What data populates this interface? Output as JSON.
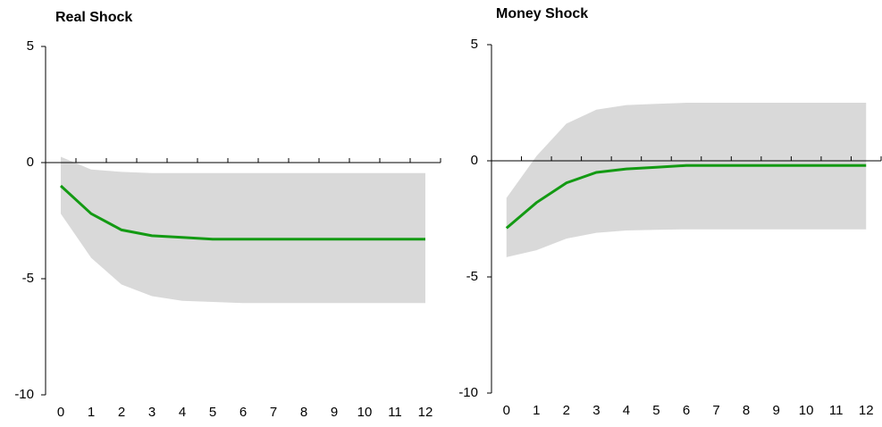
{
  "chart_data": [
    {
      "type": "line",
      "title": "Real Shock",
      "categories": [
        "0",
        "1",
        "2",
        "3",
        "4",
        "5",
        "6",
        "7",
        "8",
        "9",
        "10",
        "11",
        "12"
      ],
      "line": {
        "color": "#139a13",
        "values": [
          -1.0,
          -2.2,
          -2.9,
          -3.15,
          -3.22,
          -3.3,
          -3.3,
          -3.3,
          -3.3,
          -3.3,
          -3.3,
          -3.3,
          -3.3
        ]
      },
      "band": {
        "color": "#d9d9d9",
        "upper": [
          0.25,
          -0.3,
          -0.4,
          -0.45,
          -0.45,
          -0.45,
          -0.45,
          -0.45,
          -0.45,
          -0.45,
          -0.45,
          -0.45,
          -0.45
        ],
        "lower": [
          -2.2,
          -4.1,
          -5.25,
          -5.75,
          -5.95,
          -6.0,
          -6.05,
          -6.05,
          -6.05,
          -6.05,
          -6.05,
          -6.05,
          -6.05
        ]
      },
      "ylim": [
        -10,
        5
      ],
      "yticks": [
        -10,
        -5,
        0,
        5
      ]
    },
    {
      "type": "line",
      "title": "Money Shock",
      "categories": [
        "0",
        "1",
        "2",
        "3",
        "4",
        "5",
        "6",
        "7",
        "8",
        "9",
        "10",
        "11",
        "12"
      ],
      "line": {
        "color": "#139a13",
        "values": [
          -2.9,
          -1.8,
          -0.95,
          -0.5,
          -0.35,
          -0.28,
          -0.2,
          -0.2,
          -0.2,
          -0.2,
          -0.2,
          -0.2,
          -0.2
        ]
      },
      "band": {
        "color": "#d9d9d9",
        "upper": [
          -1.6,
          0.2,
          1.6,
          2.2,
          2.4,
          2.45,
          2.5,
          2.5,
          2.5,
          2.5,
          2.5,
          2.5,
          2.5
        ],
        "lower": [
          -4.15,
          -3.85,
          -3.35,
          -3.1,
          -3.0,
          -2.97,
          -2.95,
          -2.95,
          -2.95,
          -2.95,
          -2.95,
          -2.95,
          -2.95
        ]
      },
      "ylim": [
        -10,
        5
      ],
      "yticks": [
        -10,
        -5,
        0,
        5
      ]
    }
  ]
}
